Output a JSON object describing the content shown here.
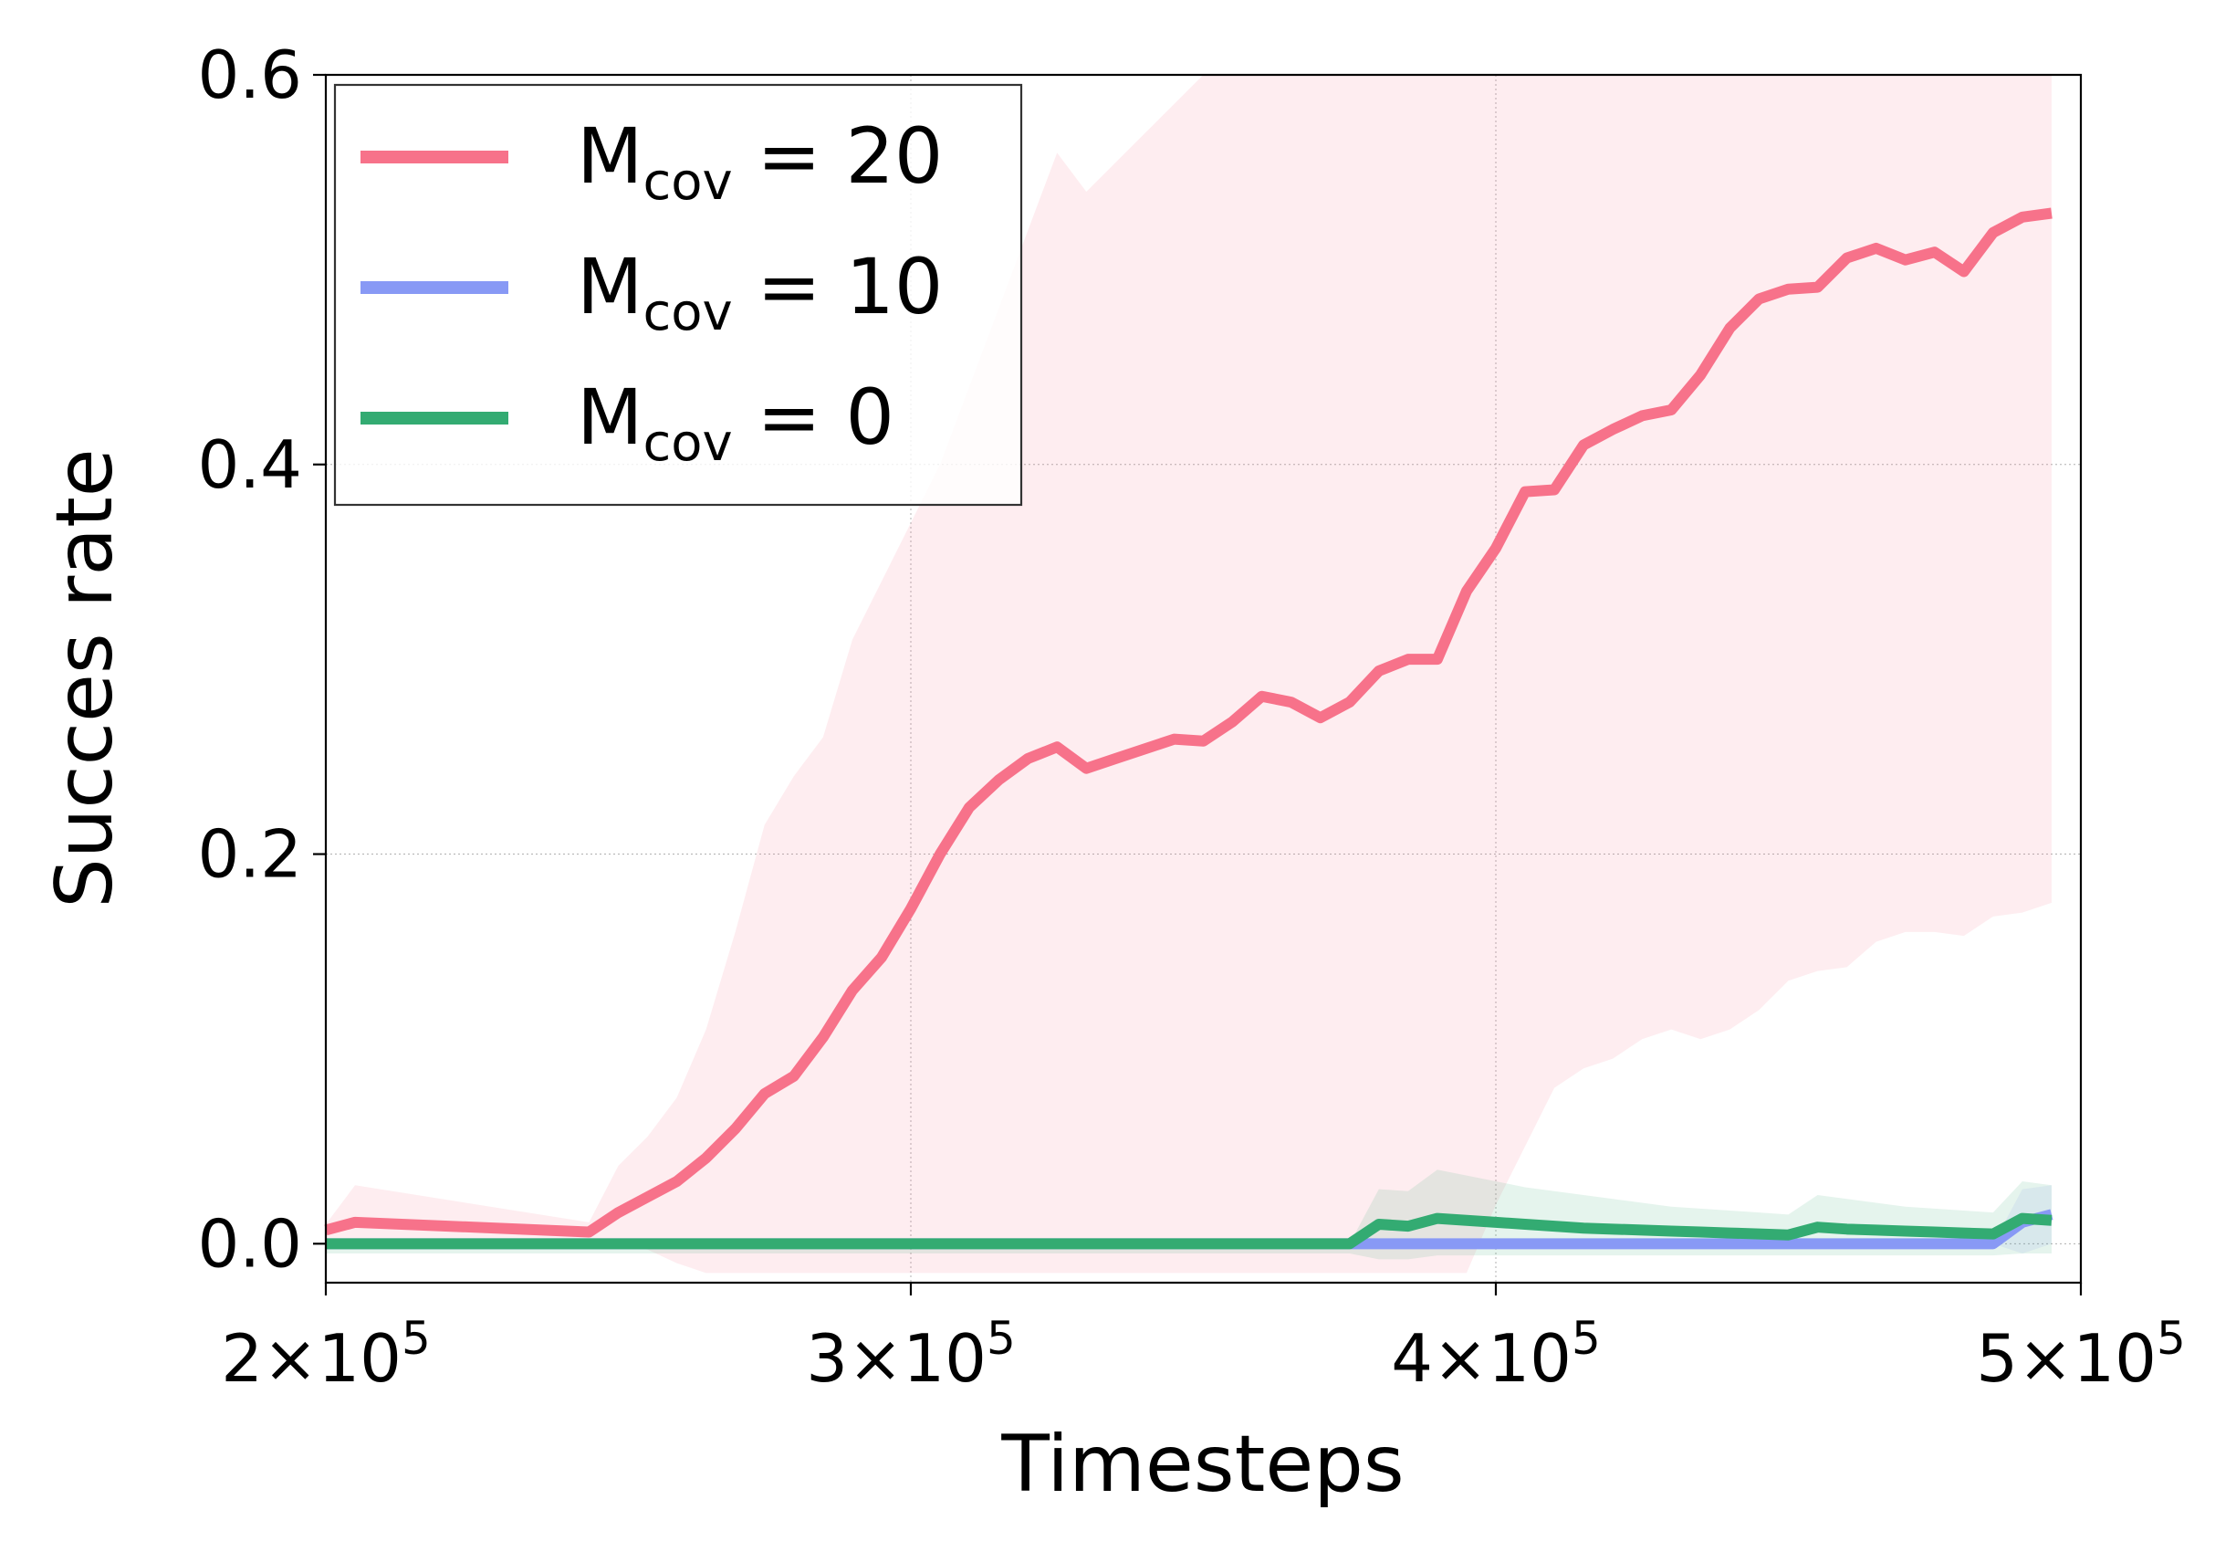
{
  "chart_data": {
    "type": "line",
    "title": "",
    "xlabel": "Timesteps",
    "ylabel": "Succes rate",
    "xlim": [
      200000,
      500000
    ],
    "ylim": [
      -0.02,
      0.6
    ],
    "xticks": [
      {
        "value": 200000,
        "base": "2×10",
        "exp": "5"
      },
      {
        "value": 300000,
        "base": "3×10",
        "exp": "5"
      },
      {
        "value": 400000,
        "base": "4×10",
        "exp": "5"
      },
      {
        "value": 500000,
        "base": "5×10",
        "exp": "5"
      }
    ],
    "yticks": [
      {
        "value": 0.0,
        "label": "0.0"
      },
      {
        "value": 0.2,
        "label": "0.2"
      },
      {
        "value": 0.4,
        "label": "0.4"
      },
      {
        "value": 0.6,
        "label": "0.6"
      }
    ],
    "grid": true,
    "legend_position": "top-left",
    "x": [
      200000,
      205000,
      245000,
      250000,
      255000,
      260000,
      265000,
      270000,
      275000,
      280000,
      285000,
      290000,
      295000,
      300000,
      305000,
      310000,
      315000,
      320000,
      325000,
      330000,
      335000,
      340000,
      345000,
      350000,
      355000,
      360000,
      365000,
      370000,
      375000,
      380000,
      385000,
      390000,
      395000,
      400000,
      405000,
      410000,
      415000,
      420000,
      425000,
      430000,
      435000,
      440000,
      445000,
      450000,
      455000,
      460000,
      465000,
      470000,
      475000,
      480000,
      485000,
      490000,
      495000
    ],
    "series": [
      {
        "name_main": "M",
        "name_sub": "cov",
        "name_rest": " = 20",
        "color": "#f7728a",
        "values": [
          0.007,
          0.011,
          0.006,
          0.016,
          0.024,
          0.032,
          0.044,
          0.059,
          0.077,
          0.086,
          0.106,
          0.13,
          0.147,
          0.172,
          0.2,
          0.224,
          0.238,
          0.249,
          0.255,
          0.244,
          0.249,
          0.254,
          0.259,
          0.258,
          0.268,
          0.281,
          0.278,
          0.27,
          0.278,
          0.294,
          0.3,
          0.3,
          0.335,
          0.357,
          0.386,
          0.387,
          0.41,
          0.418,
          0.425,
          0.428,
          0.446,
          0.47,
          0.485,
          0.49,
          0.491,
          0.506,
          0.511,
          0.505,
          0.509,
          0.499,
          0.519,
          0.527,
          0.529
        ],
        "band_lower": [
          0.0,
          0.0,
          0.0,
          0.0,
          -0.003,
          -0.01,
          -0.015,
          -0.015,
          -0.015,
          -0.015,
          -0.015,
          -0.015,
          -0.015,
          -0.015,
          -0.015,
          -0.015,
          -0.015,
          -0.015,
          -0.015,
          -0.015,
          -0.015,
          -0.015,
          -0.015,
          -0.015,
          -0.015,
          -0.015,
          -0.015,
          -0.015,
          -0.015,
          -0.015,
          -0.015,
          -0.015,
          -0.015,
          0.02,
          0.05,
          0.08,
          0.09,
          0.095,
          0.105,
          0.11,
          0.105,
          0.11,
          0.12,
          0.135,
          0.14,
          0.142,
          0.155,
          0.16,
          0.16,
          0.158,
          0.168,
          0.17,
          0.175
        ],
        "band_upper": [
          0.01,
          0.03,
          0.011,
          0.04,
          0.055,
          0.075,
          0.11,
          0.16,
          0.215,
          0.24,
          0.26,
          0.31,
          0.34,
          0.37,
          0.4,
          0.44,
          0.48,
          0.52,
          0.56,
          0.54,
          0.555,
          0.57,
          0.585,
          0.6,
          0.6,
          0.6,
          0.6,
          0.6,
          0.6,
          0.6,
          0.6,
          0.6,
          0.6,
          0.6,
          0.6,
          0.6,
          0.6,
          0.6,
          0.6,
          0.6,
          0.6,
          0.6,
          0.6,
          0.6,
          0.6,
          0.6,
          0.6,
          0.6,
          0.6,
          0.6,
          0.6,
          0.6,
          0.6
        ]
      },
      {
        "name_main": "M",
        "name_sub": "cov",
        "name_rest": " = 10",
        "color": "#8899f5",
        "values": [
          0.0,
          0.0,
          0.0,
          0.0,
          0.0,
          0.0,
          0.0,
          0.0,
          0.0,
          0.0,
          0.0,
          0.0,
          0.0,
          0.0,
          0.0,
          0.0,
          0.0,
          0.0,
          0.0,
          0.0,
          0.0,
          0.0,
          0.0,
          0.0,
          0.0,
          0.0,
          0.0,
          0.0,
          0.0,
          0.0,
          0.0,
          0.0,
          0.0,
          0.0,
          0.0,
          0.0,
          0.0,
          0.0,
          0.0,
          0.0,
          0.0,
          0.0,
          0.0,
          0.0,
          0.0,
          0.0,
          0.0,
          0.0,
          0.0,
          0.0,
          0.0,
          0.011,
          0.015
        ],
        "band_lower": [
          0.0,
          0.0,
          0.0,
          0.0,
          0.0,
          0.0,
          0.0,
          0.0,
          0.0,
          0.0,
          0.0,
          0.0,
          0.0,
          0.0,
          0.0,
          0.0,
          0.0,
          0.0,
          0.0,
          0.0,
          0.0,
          0.0,
          0.0,
          0.0,
          0.0,
          0.0,
          0.0,
          0.0,
          0.0,
          0.0,
          0.0,
          0.0,
          0.0,
          0.0,
          0.0,
          0.0,
          0.0,
          0.0,
          0.0,
          0.0,
          0.0,
          0.0,
          0.0,
          0.0,
          0.0,
          0.0,
          0.0,
          0.0,
          0.0,
          0.0,
          0.0,
          -0.005,
          0.0
        ],
        "band_upper": [
          0.0,
          0.0,
          0.0,
          0.0,
          0.0,
          0.0,
          0.0,
          0.0,
          0.0,
          0.0,
          0.0,
          0.0,
          0.0,
          0.0,
          0.0,
          0.0,
          0.0,
          0.0,
          0.0,
          0.0,
          0.0,
          0.0,
          0.0,
          0.0,
          0.0,
          0.0,
          0.0,
          0.0,
          0.0,
          0.0,
          0.0,
          0.0,
          0.0,
          0.0,
          0.0,
          0.0,
          0.0,
          0.0,
          0.0,
          0.0,
          0.0,
          0.0,
          0.0,
          0.0,
          0.0,
          0.0,
          0.0,
          0.0,
          0.0,
          0.0,
          0.0,
          0.028,
          0.03
        ]
      },
      {
        "name_main": "M",
        "name_sub": "cov",
        "name_rest": " = 0",
        "color": "#33ab72",
        "values": [
          0.0,
          0.0,
          0.0,
          0.0,
          0.0,
          0.0,
          0.0,
          0.0,
          0.0,
          0.0,
          0.0,
          0.0,
          0.0,
          0.0,
          0.0,
          0.0,
          0.0,
          0.0,
          0.0,
          0.0,
          0.0,
          0.0,
          0.0,
          0.0,
          0.0,
          0.0,
          0.0,
          0.0,
          0.0,
          0.01,
          0.009,
          0.013,
          0.012,
          0.011,
          0.01,
          0.009,
          0.008,
          0.0075,
          0.007,
          0.0065,
          0.006,
          0.0055,
          0.005,
          0.0045,
          0.0085,
          0.0075,
          0.007,
          0.0065,
          0.006,
          0.0055,
          0.005,
          0.013,
          0.012
        ],
        "band_lower": [
          -0.005,
          -0.005,
          -0.005,
          -0.005,
          -0.005,
          -0.005,
          -0.005,
          -0.005,
          -0.005,
          -0.005,
          -0.005,
          -0.005,
          -0.005,
          -0.005,
          -0.005,
          -0.005,
          -0.005,
          -0.005,
          -0.005,
          -0.005,
          -0.005,
          -0.005,
          -0.005,
          -0.005,
          -0.005,
          -0.005,
          -0.005,
          -0.005,
          -0.005,
          -0.008,
          -0.008,
          -0.006,
          -0.006,
          -0.006,
          -0.006,
          -0.006,
          -0.006,
          -0.006,
          -0.006,
          -0.006,
          -0.006,
          -0.006,
          -0.006,
          -0.006,
          -0.006,
          -0.006,
          -0.006,
          -0.006,
          -0.006,
          -0.006,
          -0.006,
          -0.005,
          -0.005
        ],
        "band_upper": [
          0.0,
          0.0,
          0.0,
          0.0,
          0.0,
          0.0,
          0.0,
          0.0,
          0.0,
          0.0,
          0.0,
          0.0,
          0.0,
          0.0,
          0.0,
          0.0,
          0.0,
          0.0,
          0.0,
          0.0,
          0.0,
          0.0,
          0.0,
          0.0,
          0.0,
          0.0,
          0.0,
          0.0,
          0.0,
          0.028,
          0.027,
          0.038,
          0.035,
          0.032,
          0.029,
          0.027,
          0.025,
          0.023,
          0.021,
          0.019,
          0.018,
          0.017,
          0.016,
          0.015,
          0.025,
          0.023,
          0.021,
          0.019,
          0.018,
          0.017,
          0.016,
          0.032,
          0.03
        ]
      }
    ]
  }
}
